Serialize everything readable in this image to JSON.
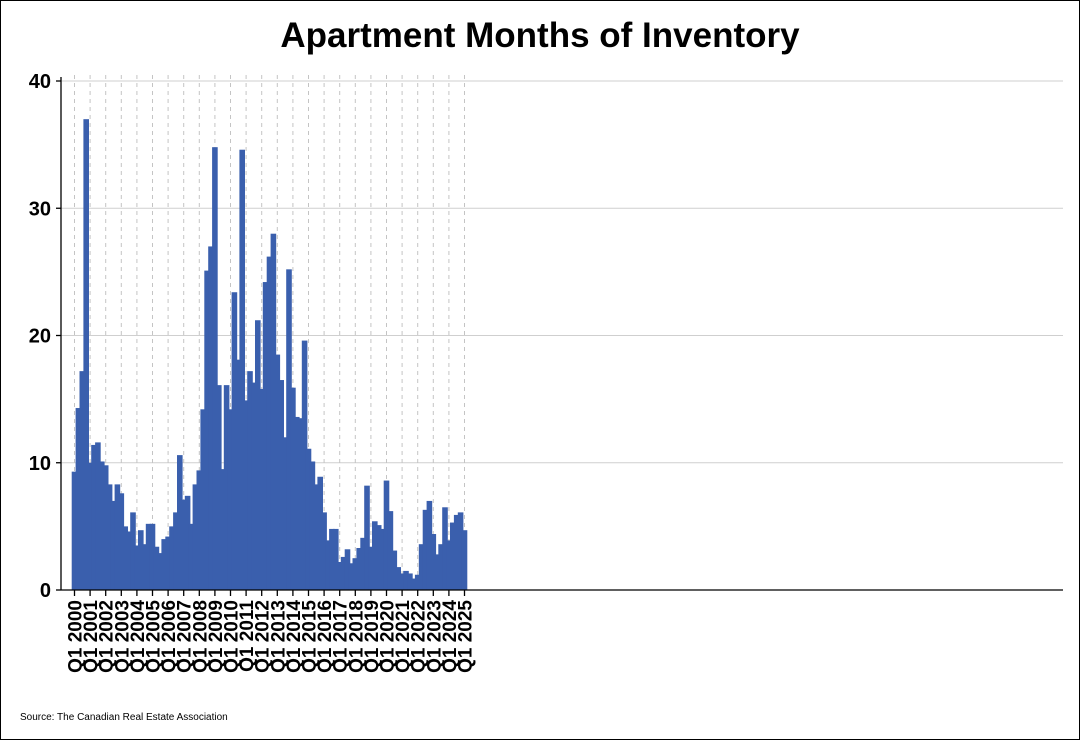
{
  "chart_data": {
    "type": "bar",
    "title": "Apartment Months of Inventory",
    "source": "Source: The Canadian Real Estate Association",
    "series_color": "#3a5fad",
    "ylim": [
      0,
      40
    ],
    "yticks": [
      0,
      10,
      20,
      30,
      40
    ],
    "xtick_labels": [
      "Q1 2000",
      "Q1 2001",
      "Q1 2002",
      "Q1 2003",
      "Q1 2004",
      "Q1 2005",
      "Q1 2006",
      "Q1 2007",
      "Q1 2008",
      "Q1 2009",
      "Q1 2010",
      "Q1 2011",
      "Q1 2012",
      "Q1 2013",
      "Q1 2014",
      "Q1 2015",
      "Q1 2016",
      "Q1 2017",
      "Q1 2018",
      "Q1 2019",
      "Q1 2020",
      "Q1 2021",
      "Q1 2022",
      "Q1 2023",
      "Q1 2024",
      "Q1 2025"
    ],
    "grid": true,
    "categories": [
      "Q1 2000",
      "Q2 2000",
      "Q3 2000",
      "Q4 2000",
      "Q1 2001",
      "Q2 2001",
      "Q3 2001",
      "Q4 2001",
      "Q1 2002",
      "Q2 2002",
      "Q3 2002",
      "Q4 2002",
      "Q1 2003",
      "Q2 2003",
      "Q3 2003",
      "Q4 2003",
      "Q1 2004",
      "Q2 2004",
      "Q3 2004",
      "Q4 2004",
      "Q1 2005",
      "Q2 2005",
      "Q3 2005",
      "Q4 2005",
      "Q1 2006",
      "Q2 2006",
      "Q3 2006",
      "Q4 2006",
      "Q1 2007",
      "Q2 2007",
      "Q3 2007",
      "Q4 2007",
      "Q1 2008",
      "Q2 2008",
      "Q3 2008",
      "Q4 2008",
      "Q1 2009",
      "Q2 2009",
      "Q3 2009",
      "Q4 2009",
      "Q1 2010",
      "Q2 2010",
      "Q3 2010",
      "Q4 2010",
      "Q1 2011",
      "Q2 2011",
      "Q3 2011",
      "Q4 2011",
      "Q1 2012",
      "Q2 2012",
      "Q3 2012",
      "Q4 2012",
      "Q1 2013",
      "Q2 2013",
      "Q3 2013",
      "Q4 2013",
      "Q1 2014",
      "Q2 2014",
      "Q3 2014",
      "Q4 2014",
      "Q1 2015",
      "Q2 2015",
      "Q3 2015",
      "Q4 2015",
      "Q1 2016",
      "Q2 2016",
      "Q3 2016",
      "Q4 2016",
      "Q1 2017",
      "Q2 2017",
      "Q3 2017",
      "Q4 2017",
      "Q1 2018",
      "Q2 2018",
      "Q3 2018",
      "Q4 2018",
      "Q1 2019",
      "Q2 2019",
      "Q3 2019",
      "Q4 2019",
      "Q1 2020",
      "Q2 2020",
      "Q3 2020",
      "Q4 2020",
      "Q1 2021",
      "Q2 2021",
      "Q3 2021",
      "Q4 2021",
      "Q1 2022",
      "Q2 2022",
      "Q3 2022",
      "Q4 2022",
      "Q1 2023",
      "Q2 2023",
      "Q3 2023",
      "Q4 2023",
      "Q1 2024",
      "Q2 2024",
      "Q3 2024",
      "Q4 2024",
      "Q1 2025"
    ],
    "values": [
      9.3,
      14.3,
      17.2,
      37.0,
      10.0,
      11.4,
      11.6,
      10.1,
      9.8,
      8.3,
      7.0,
      8.3,
      7.6,
      5.0,
      4.6,
      6.1,
      3.5,
      4.7,
      3.6,
      5.2,
      5.2,
      3.4,
      2.9,
      4.0,
      4.2,
      5.0,
      6.1,
      10.6,
      7.1,
      7.4,
      5.2,
      8.3,
      9.4,
      14.2,
      25.1,
      27.0,
      34.8,
      16.1,
      9.5,
      16.1,
      14.2,
      23.4,
      18.1,
      34.6,
      14.9,
      17.2,
      16.3,
      21.2,
      15.8,
      24.2,
      26.2,
      28.0,
      18.5,
      16.5,
      12.0,
      25.2,
      15.9,
      13.6,
      13.5,
      19.6,
      11.1,
      10.1,
      8.3,
      8.9,
      6.1,
      3.9,
      4.8,
      4.8,
      2.2,
      2.6,
      3.2,
      2.1,
      2.5,
      3.3,
      4.1,
      8.2,
      3.4,
      5.4,
      5.1,
      4.8,
      8.6,
      6.2,
      3.1,
      1.8,
      1.3,
      1.5,
      1.3,
      0.9,
      1.2,
      3.6,
      6.3,
      7.0,
      4.4,
      2.8,
      3.6,
      6.5,
      3.9,
      5.3,
      5.9,
      6.1,
      4.7
    ]
  }
}
